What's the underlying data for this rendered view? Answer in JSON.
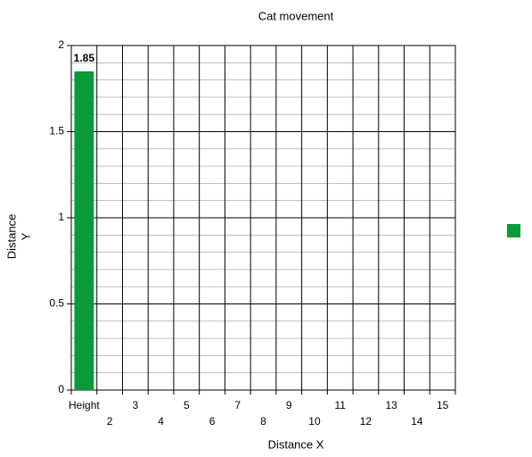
{
  "chart_data": {
    "type": "bar",
    "title": "Cat movement",
    "x_label": "Distance X",
    "y_label_lines": [
      "Distance",
      "Y"
    ],
    "categories": [
      "Height",
      "2",
      "3",
      "4",
      "5",
      "6",
      "7",
      "8",
      "9",
      "10",
      "11",
      "12",
      "13",
      "14",
      "15"
    ],
    "series": [
      {
        "color": "#0a9a3a",
        "values": [
          1.85,
          null,
          null,
          null,
          null,
          null,
          null,
          null,
          null,
          null,
          null,
          null,
          null,
          null,
          null
        ]
      }
    ],
    "ylim": [
      0,
      2
    ],
    "yticks": [
      0,
      0.5,
      1,
      1.5,
      2
    ],
    "minor_grid_step": 0.1,
    "grid": true,
    "legend": "right",
    "data_labels": true
  }
}
